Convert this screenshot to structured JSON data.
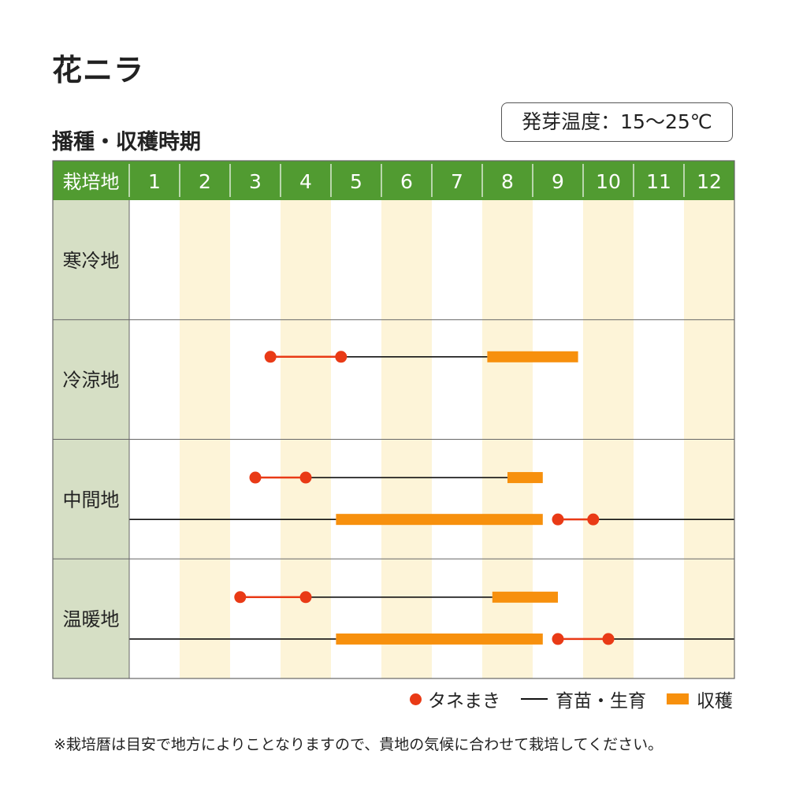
{
  "title": "花ニラ",
  "subtitle": "播種・収穫時期",
  "temperature_note": "発芽温度：15〜25℃",
  "footnote": "※栽培暦は目安で地方によりことなりますので、貴地の気候に合わせて栽培してください。",
  "colors": {
    "header_green": "#519b31",
    "region_bg": "#d6dfc5",
    "stripe": "#fdf4d8",
    "sowing": "#e93a16",
    "harvest": "#f7900d",
    "growing": "#111111",
    "grid": "#666666"
  },
  "legend": [
    {
      "key": "sowing",
      "label": "タネまき",
      "shape": "dot"
    },
    {
      "key": "growing",
      "label": "育苗・生育",
      "shape": "line"
    },
    {
      "key": "harvest",
      "label": "収穫",
      "shape": "bar"
    }
  ],
  "chart_data": {
    "type": "gantt",
    "header_label": "栽培地",
    "x_unit": "month",
    "months": [
      "1",
      "2",
      "3",
      "4",
      "5",
      "6",
      "7",
      "8",
      "9",
      "10",
      "11",
      "12"
    ],
    "regions": [
      {
        "name": "寒冷地",
        "rows": []
      },
      {
        "name": "冷涼地",
        "rows": [
          [
            {
              "type": "sowing",
              "start": 3.8,
              "end": 5.2
            },
            {
              "type": "growing",
              "start": 5.2,
              "end": 8.1
            },
            {
              "type": "harvest",
              "start": 8.1,
              "end": 9.9
            }
          ]
        ]
      },
      {
        "name": "中間地",
        "rows": [
          [
            {
              "type": "sowing",
              "start": 3.5,
              "end": 4.5
            },
            {
              "type": "growing",
              "start": 4.5,
              "end": 8.5
            },
            {
              "type": "harvest",
              "start": 8.5,
              "end": 9.2
            }
          ],
          [
            {
              "type": "growing",
              "start": 1.0,
              "end": 5.1
            },
            {
              "type": "harvest",
              "start": 5.1,
              "end": 9.2
            },
            {
              "type": "sowing",
              "start": 9.5,
              "end": 10.2
            },
            {
              "type": "growing",
              "start": 10.2,
              "end": 13.0
            }
          ]
        ]
      },
      {
        "name": "温暖地",
        "rows": [
          [
            {
              "type": "sowing",
              "start": 3.2,
              "end": 4.5
            },
            {
              "type": "growing",
              "start": 4.5,
              "end": 8.2
            },
            {
              "type": "harvest",
              "start": 8.2,
              "end": 9.5
            }
          ],
          [
            {
              "type": "growing",
              "start": 1.0,
              "end": 5.1
            },
            {
              "type": "harvest",
              "start": 5.1,
              "end": 9.2
            },
            {
              "type": "sowing",
              "start": 9.5,
              "end": 10.5
            },
            {
              "type": "growing",
              "start": 10.5,
              "end": 13.0
            }
          ]
        ]
      }
    ]
  }
}
